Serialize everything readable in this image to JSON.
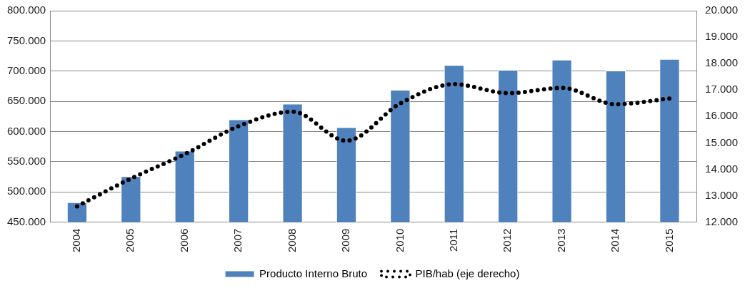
{
  "chart_data": {
    "type": "bar",
    "categories": [
      "2004",
      "2005",
      "2006",
      "2007",
      "2008",
      "2009",
      "2010",
      "2011",
      "2012",
      "2013",
      "2014",
      "2015"
    ],
    "series": [
      {
        "name": "Producto Interno Bruto",
        "color": "#4f81bd",
        "values": [
          483000,
          526000,
          568000,
          620000,
          646000,
          607000,
          669000,
          710000,
          702000,
          719000,
          701000,
          720000
        ]
      },
      {
        "name": "PIB/hab (eje derecho)",
        "color": "#000000",
        "type": "line",
        "axis": "y2",
        "line_style": "dotted",
        "marker": "none",
        "values": [
          12600,
          13650,
          14570,
          15630,
          16180,
          15080,
          16490,
          17220,
          16880,
          17080,
          16460,
          16680
        ]
      }
    ],
    "ylim": [
      450000,
      800000
    ],
    "yticks": [
      {
        "value": 450000,
        "label": "450.000"
      },
      {
        "value": 500000,
        "label": "500.000"
      },
      {
        "value": 550000,
        "label": "550.000"
      },
      {
        "value": 600000,
        "label": "600.000"
      },
      {
        "value": 650000,
        "label": "650.000"
      },
      {
        "value": 700000,
        "label": "700.000"
      },
      {
        "value": 750000,
        "label": "750.000"
      },
      {
        "value": 800000,
        "label": "800.000"
      }
    ],
    "y2lim": [
      12000,
      20000
    ],
    "y2ticks": [
      {
        "value": 12000,
        "label": "12.000"
      },
      {
        "value": 13000,
        "label": "13.000"
      },
      {
        "value": 14000,
        "label": "14.000"
      },
      {
        "value": 15000,
        "label": "15.000"
      },
      {
        "value": 16000,
        "label": "16.000"
      },
      {
        "value": 17000,
        "label": "17.000"
      },
      {
        "value": 18000,
        "label": "18.000"
      },
      {
        "value": 19000,
        "label": "19.000"
      },
      {
        "value": 20000,
        "label": "20.000"
      }
    ],
    "grid": "y",
    "legend": "bottom"
  }
}
